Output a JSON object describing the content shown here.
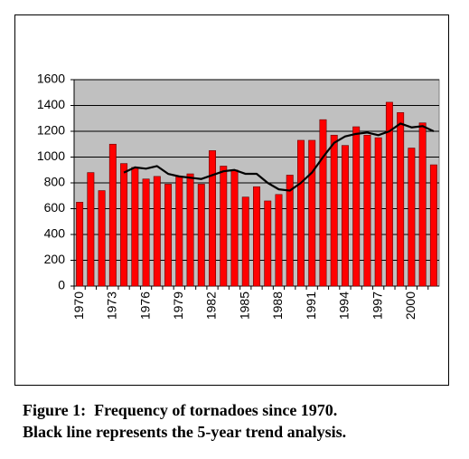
{
  "chart_data": {
    "type": "bar",
    "categories": [
      "1970",
      null,
      null,
      "1973",
      null,
      null,
      "1976",
      null,
      null,
      "1979",
      null,
      null,
      "1982",
      null,
      null,
      "1985",
      null,
      null,
      "1988",
      null,
      null,
      "1991",
      null,
      null,
      "1994",
      null,
      null,
      "1997",
      null,
      null,
      "2000",
      null,
      null
    ],
    "series": [
      {
        "color": "#ff0000",
        "values": [
          650,
          880,
          740,
          1100,
          950,
          920,
          830,
          850,
          790,
          850,
          870,
          790,
          1050,
          930,
          900,
          690,
          770,
          660,
          710,
          860,
          1130,
          1130,
          1290,
          1170,
          1090,
          1235,
          1170,
          1150,
          1425,
          1345,
          1070,
          1265,
          940
        ]
      },
      {
        "type": "line",
        "color": "#000000",
        "values": [
          null,
          null,
          null,
          null,
          880,
          920,
          910,
          930,
          870,
          850,
          840,
          830,
          860,
          890,
          900,
          870,
          870,
          800,
          750,
          740,
          800,
          880,
          1000,
          1110,
          1160,
          1180,
          1190,
          1170,
          1200,
          1260,
          1230,
          1240,
          1200
        ]
      }
    ],
    "ylim": [
      0,
      1600
    ],
    "yticks": [
      0,
      200,
      400,
      600,
      800,
      1000,
      1200,
      1400,
      1600
    ],
    "grid": true,
    "background": "#c0c0c0"
  },
  "caption": [
    "Figure 1:  Frequency of tornadoes since 1970.",
    "Black line represents the 5-year trend analysis."
  ]
}
